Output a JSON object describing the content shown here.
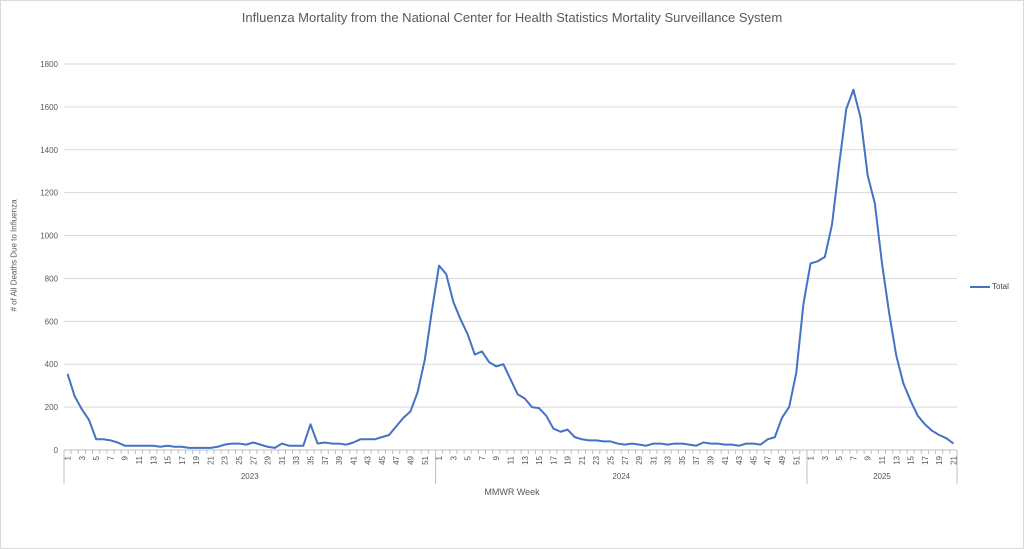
{
  "chart_data": {
    "type": "line",
    "title": "Influenza Mortality from the National Center for Health Statistics Mortality Surveillance System",
    "xlabel": "MMWR Week",
    "ylabel": "# of All Deaths Due to Influenza",
    "ylim": [
      0,
      1800
    ],
    "yticks": [
      0,
      200,
      400,
      600,
      800,
      1000,
      1200,
      1400,
      1600,
      1800
    ],
    "grid": true,
    "legend_position": "right",
    "years": [
      {
        "label": "2023",
        "weeks": 52
      },
      {
        "label": "2024",
        "weeks": 52
      },
      {
        "label": "2025",
        "weeks": 21
      }
    ],
    "series": [
      {
        "name": "Total",
        "color": "#4472c4",
        "values": [
          355,
          250,
          190,
          140,
          50,
          50,
          45,
          35,
          20,
          20,
          20,
          20,
          20,
          15,
          20,
          15,
          15,
          10,
          10,
          10,
          10,
          15,
          25,
          30,
          30,
          25,
          35,
          25,
          15,
          10,
          30,
          20,
          20,
          20,
          120,
          30,
          35,
          30,
          30,
          25,
          35,
          50,
          50,
          50,
          60,
          70,
          110,
          150,
          180,
          270,
          420,
          650,
          860,
          820,
          690,
          610,
          540,
          445,
          460,
          410,
          390,
          400,
          330,
          260,
          240,
          200,
          195,
          160,
          100,
          85,
          95,
          60,
          50,
          45,
          45,
          40,
          40,
          30,
          25,
          30,
          25,
          20,
          30,
          30,
          25,
          30,
          30,
          25,
          20,
          35,
          30,
          30,
          25,
          25,
          20,
          30,
          30,
          25,
          50,
          60,
          150,
          200,
          360,
          680,
          870,
          880,
          900,
          1050,
          1330,
          1590,
          1680,
          1550,
          1280,
          1150,
          870,
          640,
          440,
          310,
          230,
          160,
          120,
          90,
          70,
          55,
          30
        ]
      }
    ]
  }
}
